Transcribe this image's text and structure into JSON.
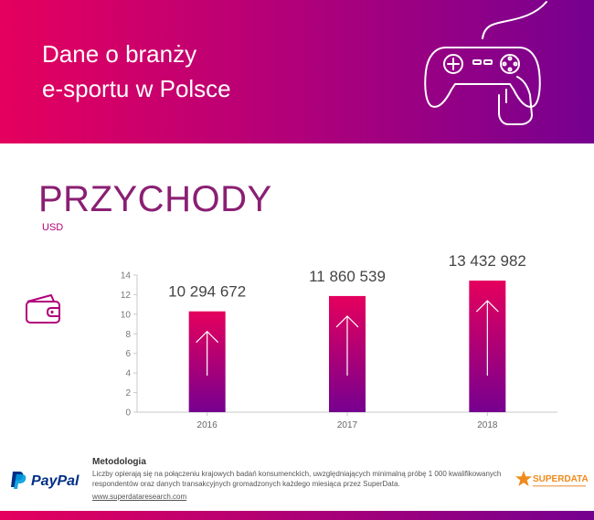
{
  "header": {
    "title_line1": "Dane o branży",
    "title_line2": "e-sportu w Polsce",
    "icon": "gamepad-icon"
  },
  "section": {
    "title": "PRZYCHODY",
    "unit": "USD",
    "icon": "wallet-icon"
  },
  "chart_data": {
    "type": "bar",
    "categories": [
      "2016",
      "2017",
      "2018"
    ],
    "values": [
      10294672,
      11860539,
      13432982
    ],
    "value_labels": [
      "10 294 672",
      "11 860 539",
      "13 432 982"
    ],
    "yticks": [
      "0",
      "2",
      "4",
      "6",
      "8",
      "10",
      "12",
      "14"
    ],
    "ylim": [
      0,
      14
    ],
    "title": "PRZYCHODY",
    "xlabel": "",
    "ylabel": "",
    "grid": false,
    "colors": {
      "bar_top": "#e5005d",
      "bar_bottom": "#76008f",
      "arrow": "#ffffff"
    }
  },
  "footer": {
    "logo_text": "PayPal",
    "method_title": "Metodologia",
    "method_text": "Liczby opierają się na połączeniu krajowych badań konsumenckich, uwzględniających minimalną próbę 1 000 kwalifikowanych respondentów oraz danych transakcyjnych gromadzonych każdego miesiąca przez SuperData.",
    "link": "www.superdataresearch.com",
    "partner_logo": "SUPERDATA"
  },
  "colors": {
    "brand_pink": "#e5005d",
    "brand_purple": "#76008f",
    "title_color": "#8a1f73"
  }
}
